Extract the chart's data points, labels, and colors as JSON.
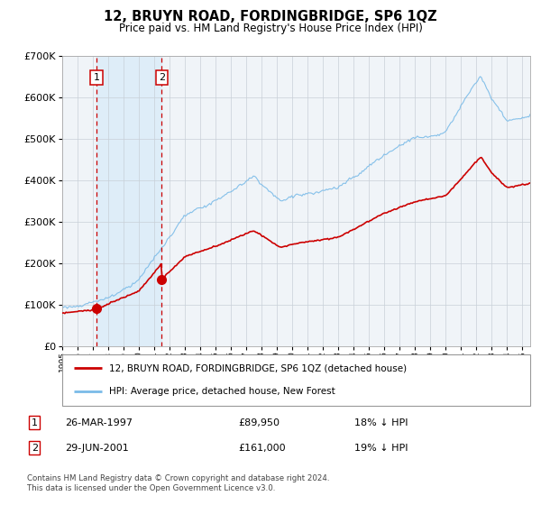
{
  "title": "12, BRUYN ROAD, FORDINGBRIDGE, SP6 1QZ",
  "subtitle": "Price paid vs. HM Land Registry's House Price Index (HPI)",
  "legend_line1": "12, BRUYN ROAD, FORDINGBRIDGE, SP6 1QZ (detached house)",
  "legend_line2": "HPI: Average price, detached house, New Forest",
  "transaction1_date": "26-MAR-1997",
  "transaction1_price": "£89,950",
  "transaction1_hpi": "18% ↓ HPI",
  "transaction2_date": "29-JUN-2001",
  "transaction2_price": "£161,000",
  "transaction2_hpi": "19% ↓ HPI",
  "footnote": "Contains HM Land Registry data © Crown copyright and database right 2024.\nThis data is licensed under the Open Government Licence v3.0.",
  "hpi_color": "#7abbe8",
  "price_color": "#cc0000",
  "vline_color": "#cc0000",
  "shade_color": "#deedf8",
  "bg_color": "#f0f4f8",
  "ylim": [
    0,
    700000
  ],
  "xlim_start": 1995.0,
  "xlim_end": 2025.5,
  "transaction1_x": 1997.23,
  "transaction2_x": 2001.49,
  "price1": 89950,
  "price2": 161000
}
